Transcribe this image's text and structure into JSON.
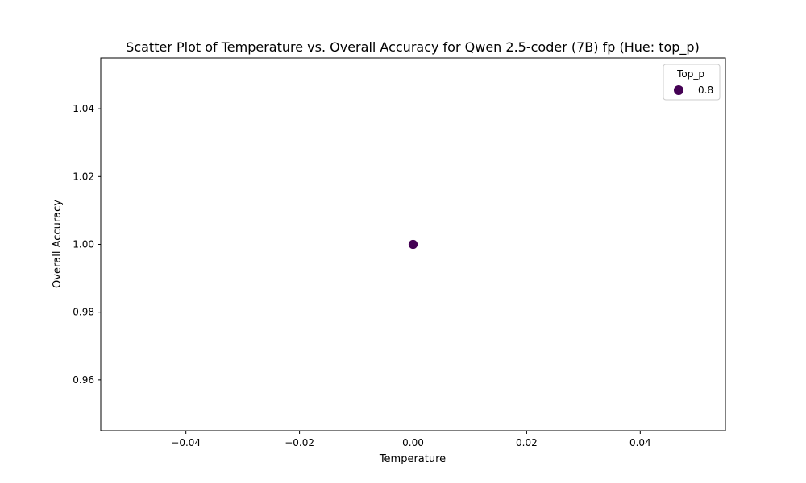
{
  "chart_data": {
    "type": "scatter",
    "title": "Scatter Plot of Temperature vs. Overall Accuracy for Qwen 2.5-coder (7B) fp (Hue: top_p)",
    "xlabel": "Temperature",
    "ylabel": "Overall Accuracy",
    "xlim": [
      -0.055,
      0.055
    ],
    "ylim": [
      0.945,
      1.055
    ],
    "x_ticks": [
      -0.04,
      -0.02,
      0.0,
      0.02,
      0.04
    ],
    "x_tick_labels": [
      "−0.04",
      "−0.02",
      "0.00",
      "0.02",
      "0.04"
    ],
    "y_ticks": [
      0.96,
      0.98,
      1.0,
      1.02,
      1.04
    ],
    "y_tick_labels": [
      "0.96",
      "0.98",
      "1.00",
      "1.02",
      "1.04"
    ],
    "grid": false,
    "legend": {
      "title": "Top_p",
      "placement": "top-right",
      "entries": [
        {
          "label": "0.8",
          "color": "#440154"
        }
      ]
    },
    "series": [
      {
        "hue": "0.8",
        "color": "#440154",
        "points": [
          {
            "x": 0.0,
            "y": 1.0
          }
        ]
      }
    ]
  }
}
